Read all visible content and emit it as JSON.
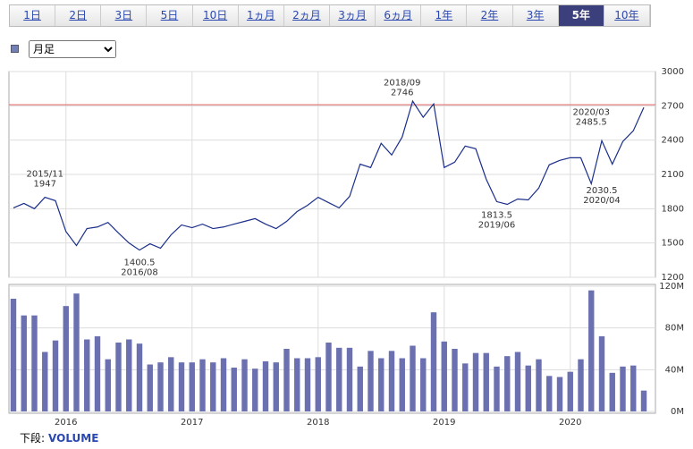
{
  "tabs": [
    "1日",
    "2日",
    "3日",
    "5日",
    "10日",
    "1ヵ月",
    "2ヵ月",
    "3ヵ月",
    "6ヵ月",
    "1年",
    "2年",
    "3年",
    "5年",
    "10年"
  ],
  "active_tab": "5年",
  "select": {
    "value": "月足"
  },
  "footer": {
    "prefix": "下段:",
    "indicator": "VOLUME"
  },
  "chart_data": [
    {
      "type": "line",
      "categories": [
        null,
        null,
        null,
        null,
        null,
        "2016",
        null,
        null,
        null,
        null,
        null,
        null,
        null,
        null,
        null,
        null,
        null,
        "2017",
        null,
        null,
        null,
        null,
        null,
        null,
        null,
        null,
        null,
        null,
        null,
        "2018",
        null,
        null,
        null,
        null,
        null,
        null,
        null,
        null,
        null,
        null,
        null,
        "2019",
        null,
        null,
        null,
        null,
        null,
        null,
        null,
        null,
        null,
        null,
        null,
        "2020",
        null,
        null,
        null,
        null,
        null,
        null,
        null
      ],
      "series": [
        {
          "color": "#1a2e8a",
          "values": [
            1807,
            1846,
            1800,
            1900,
            1870,
            1600,
            1477,
            1626,
            1640,
            1680,
            1587,
            1500,
            1438,
            1493,
            1454,
            1571,
            1658,
            1634,
            1665,
            1626,
            1640,
            1665,
            1689,
            1713,
            1665,
            1626,
            1689,
            1775,
            1830,
            1900,
            1853,
            1807,
            1908,
            2190,
            2160,
            2372,
            2270,
            2427,
            2741,
            2600,
            2717,
            2160,
            2207,
            2348,
            2325,
            2058,
            1862,
            1838,
            1885,
            1877,
            1980,
            2184,
            2223,
            2246,
            2246,
            2018,
            2395,
            2190,
            2388,
            2482,
            2686
          ]
        }
      ],
      "ylim": [
        1200,
        3000
      ],
      "yticks": [
        3000,
        2700,
        2400,
        2100,
        1800,
        1500,
        1200
      ],
      "grid": true,
      "reference_line": {
        "value": 2710,
        "color": "#e07070"
      },
      "annotations": [
        {
          "date": "2015/11",
          "value": 1947,
          "position": "above"
        },
        {
          "date": "2016/08",
          "value": 1400.5,
          "position": "below"
        },
        {
          "date": "2018/09",
          "value": 2746,
          "position": "above"
        },
        {
          "date": "2019/06",
          "value": 1813.5,
          "position": "below"
        },
        {
          "date": "2020/03",
          "value": 2485.5,
          "position": "above"
        },
        {
          "date": "2020/04",
          "value": 2030.5,
          "position": "below"
        }
      ]
    },
    {
      "type": "bar",
      "categories": [
        null,
        null,
        null,
        null,
        null,
        "2016",
        null,
        null,
        null,
        null,
        null,
        null,
        null,
        null,
        null,
        null,
        null,
        "2017",
        null,
        null,
        null,
        null,
        null,
        null,
        null,
        null,
        null,
        null,
        null,
        "2018",
        null,
        null,
        null,
        null,
        null,
        null,
        null,
        null,
        null,
        null,
        null,
        "2019",
        null,
        null,
        null,
        null,
        null,
        null,
        null,
        null,
        null,
        null,
        null,
        "2020",
        null,
        null,
        null,
        null,
        null,
        null,
        null
      ],
      "values": [
        108,
        92,
        92,
        57,
        68,
        101,
        113,
        69,
        72,
        50,
        66,
        69,
        65,
        45,
        47,
        52,
        47,
        47,
        50,
        47,
        51,
        42,
        50,
        41,
        48,
        47,
        60,
        51,
        51,
        52,
        66,
        61,
        61,
        43,
        58,
        51,
        58,
        51,
        63,
        51,
        95,
        67,
        60,
        46,
        56,
        56,
        43,
        53,
        57,
        44,
        50,
        34,
        33,
        38,
        50,
        116,
        72,
        37,
        43,
        44,
        20
      ],
      "color": "#6b70b0",
      "ylim": [
        0,
        120
      ],
      "yticks": [
        {
          "value": 120,
          "label": "120M"
        },
        {
          "value": 80,
          "label": "80M"
        },
        {
          "value": 40,
          "label": "40M"
        },
        {
          "value": 0,
          "label": "0M"
        }
      ],
      "grid": true
    }
  ]
}
